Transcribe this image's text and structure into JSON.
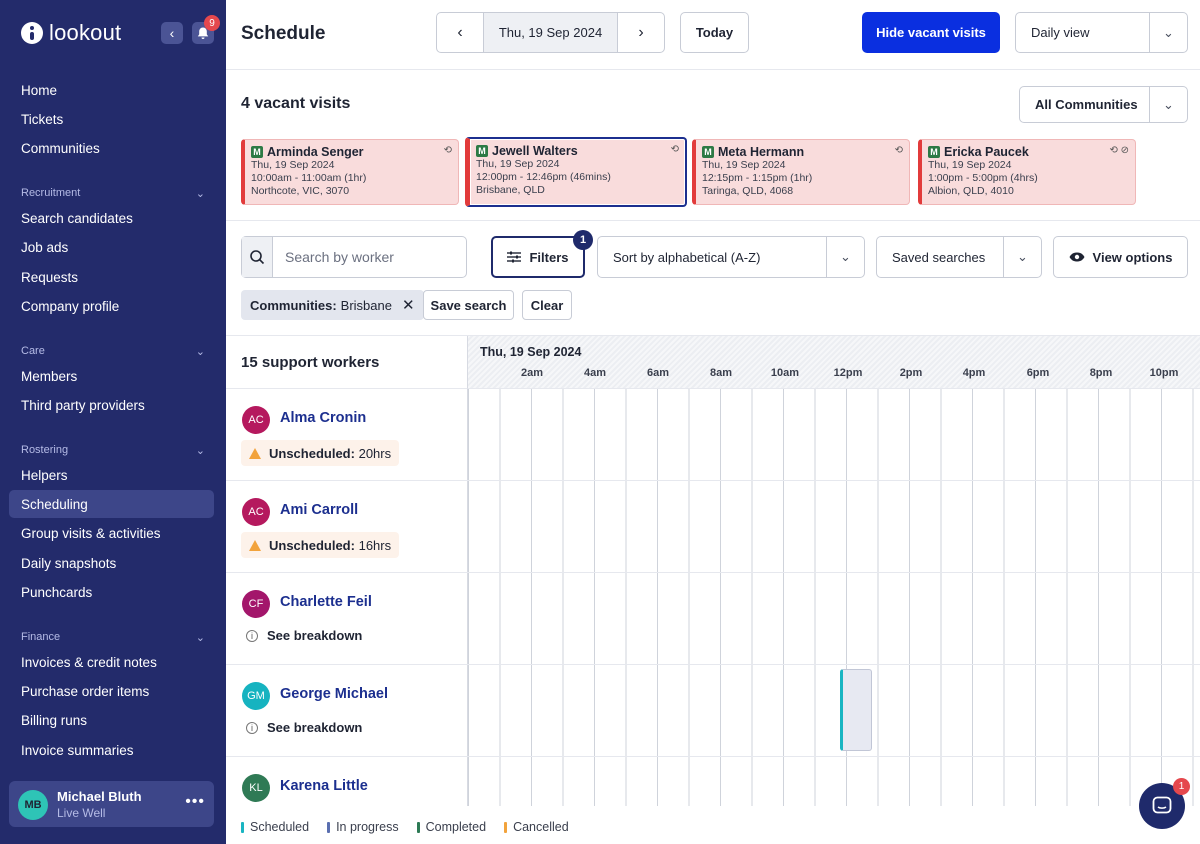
{
  "app": {
    "brand": "lookout",
    "notification_count": "9"
  },
  "sidebar": {
    "items_top": [
      "Home",
      "Tickets",
      "Communities"
    ],
    "sections": [
      {
        "title": "Recruitment",
        "items": [
          "Search candidates",
          "Job ads",
          "Requests",
          "Company profile"
        ]
      },
      {
        "title": "Care",
        "items": [
          "Members",
          "Third party providers"
        ]
      },
      {
        "title": "Rostering",
        "items": [
          "Helpers",
          "Scheduling",
          "Group visits & activities",
          "Daily snapshots",
          "Punchcards"
        ]
      },
      {
        "title": "Finance",
        "items": [
          "Invoices & credit notes",
          "Purchase order items",
          "Billing runs",
          "Invoice summaries"
        ]
      }
    ],
    "active_item": "Scheduling",
    "user": {
      "initials": "MB",
      "name": "Michael Bluth",
      "org": "Live Well"
    }
  },
  "header": {
    "title": "Schedule",
    "date": "Thu, 19 Sep 2024",
    "today_label": "Today",
    "hide_vacant_label": "Hide vacant visits",
    "view_select": "Daily view"
  },
  "vacant": {
    "title": "4 vacant visits",
    "community_select": "All Communities",
    "cards": [
      {
        "badge": "M",
        "name": "Arminda Senger",
        "date": "Thu, 19 Sep 2024",
        "time": "10:00am - 11:00am (1hr)",
        "location": "Northcote, VIC, 3070",
        "selected": false
      },
      {
        "badge": "M",
        "name": "Jewell Walters",
        "date": "Thu, 19 Sep 2024",
        "time": "12:00pm - 12:46pm (46mins)",
        "location": "Brisbane, QLD",
        "selected": true
      },
      {
        "badge": "M",
        "name": "Meta Hermann",
        "date": "Thu, 19 Sep 2024",
        "time": "12:15pm - 1:15pm (1hr)",
        "location": "Taringa, QLD, 4068",
        "selected": false
      },
      {
        "badge": "M",
        "name": "Ericka Paucek",
        "date": "Thu, 19 Sep 2024",
        "time": "1:00pm - 5:00pm (4hrs)",
        "location": "Albion, QLD, 4010",
        "selected": false
      }
    ]
  },
  "filters": {
    "search_placeholder": "Search by worker",
    "filters_label": "Filters",
    "filters_count": "1",
    "sort_select": "Sort by alphabetical (A-Z)",
    "saved_searches": "Saved searches",
    "view_options": "View options",
    "chip_key": "Communities:",
    "chip_value": "Brisbane",
    "save_search": "Save search",
    "clear": "Clear"
  },
  "grid": {
    "workers_count_label": "15 support workers",
    "date": "Thu, 19 Sep 2024",
    "hours": [
      "2am",
      "4am",
      "6am",
      "8am",
      "10am",
      "12pm",
      "2pm",
      "4pm",
      "6pm",
      "8pm",
      "10pm"
    ],
    "workers": [
      {
        "initials": "AC",
        "name": "Alma Cronin",
        "color": "#b5195e",
        "status_type": "unscheduled",
        "status_label": "Unscheduled:",
        "status_value": "20hrs"
      },
      {
        "initials": "AC",
        "name": "Ami Carroll",
        "color": "#b5195e",
        "status_type": "unscheduled",
        "status_label": "Unscheduled:",
        "status_value": "16hrs"
      },
      {
        "initials": "CF",
        "name": "Charlette Feil",
        "color": "#a3166b",
        "status_type": "breakdown",
        "status_label": "See breakdown"
      },
      {
        "initials": "GM",
        "name": "George Michael",
        "color": "#16b3c0",
        "status_type": "breakdown",
        "status_label": "See breakdown"
      },
      {
        "initials": "KL",
        "name": "Karena Little",
        "color": "#2f7a55",
        "status_type": "none"
      }
    ]
  },
  "legend": [
    {
      "label": "Scheduled",
      "color": "#1ab5c2"
    },
    {
      "label": "In progress",
      "color": "#5a6fb0"
    },
    {
      "label": "Completed",
      "color": "#2d7a55"
    },
    {
      "label": "Cancelled",
      "color": "#f2a33c"
    }
  ],
  "chat": {
    "badge": "1"
  }
}
